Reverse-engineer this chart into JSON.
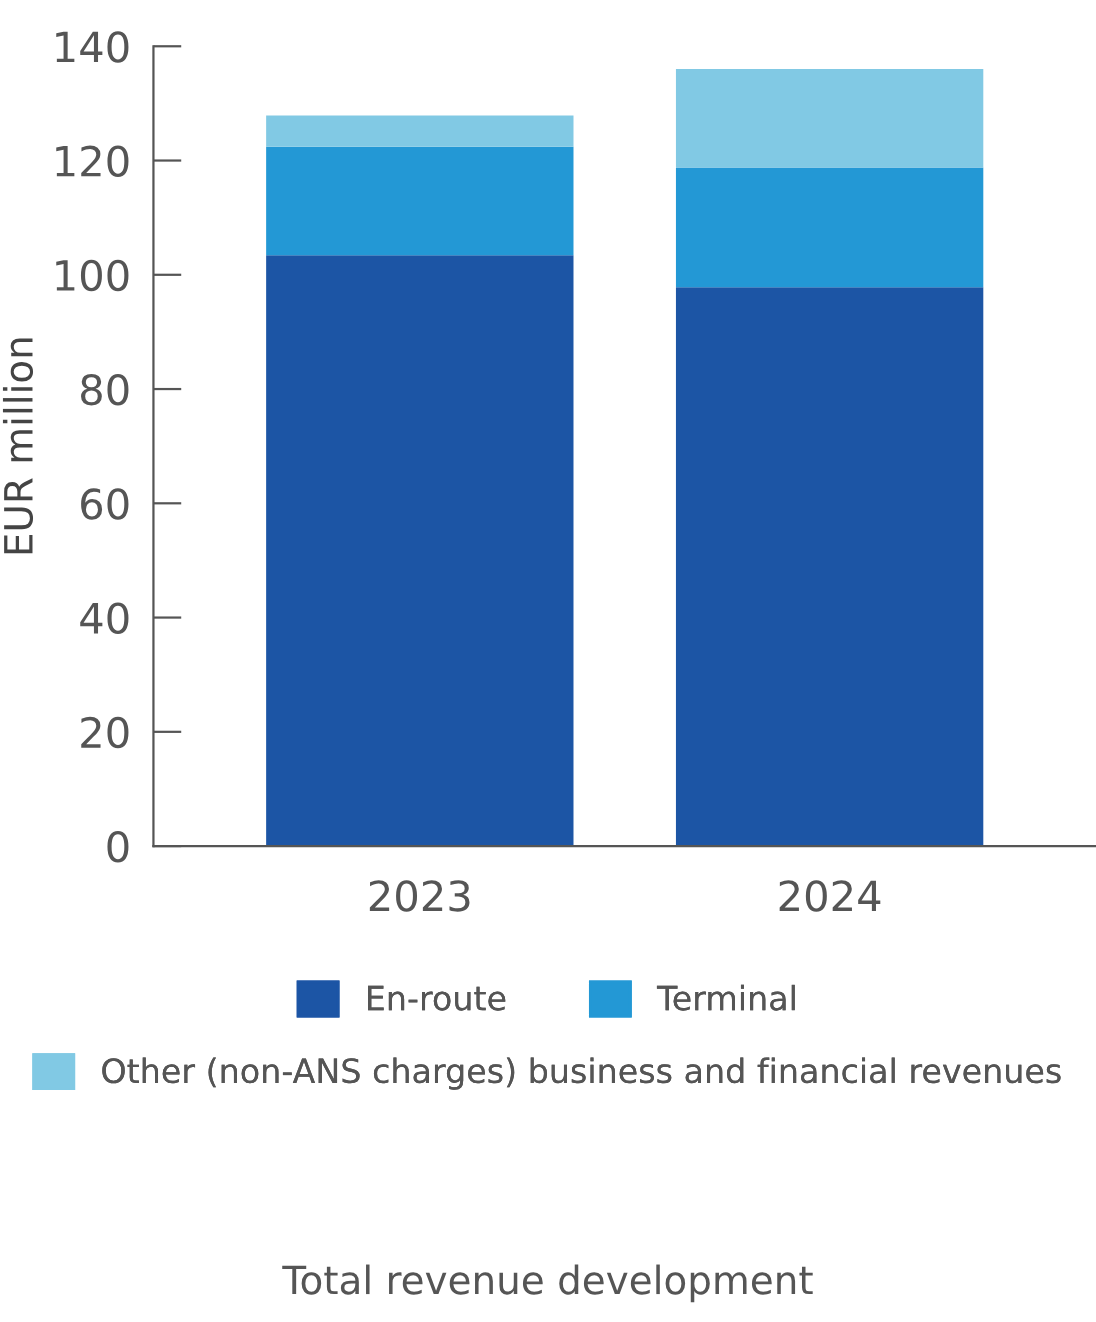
{
  "chart_data": {
    "type": "bar",
    "stacked": true,
    "title": "Total revenue development",
    "ylabel": "EUR million",
    "categories": [
      "2023",
      "2024"
    ],
    "series": [
      {
        "name": "En-route",
        "color": "#1c55a5",
        "values": [
          103.4,
          97.8
        ]
      },
      {
        "name": "Terminal",
        "color": "#2398d5",
        "values": [
          19.0,
          21.0
        ]
      },
      {
        "name": "Other (non-ANS charges) business and financial revenues",
        "color": "#81c9e4",
        "values": [
          5.5,
          17.2
        ]
      }
    ],
    "ylim": [
      0,
      140
    ],
    "yticks": [
      0,
      20,
      40,
      60,
      80,
      100,
      120,
      140
    ],
    "grid": false,
    "legend": "bottom"
  }
}
